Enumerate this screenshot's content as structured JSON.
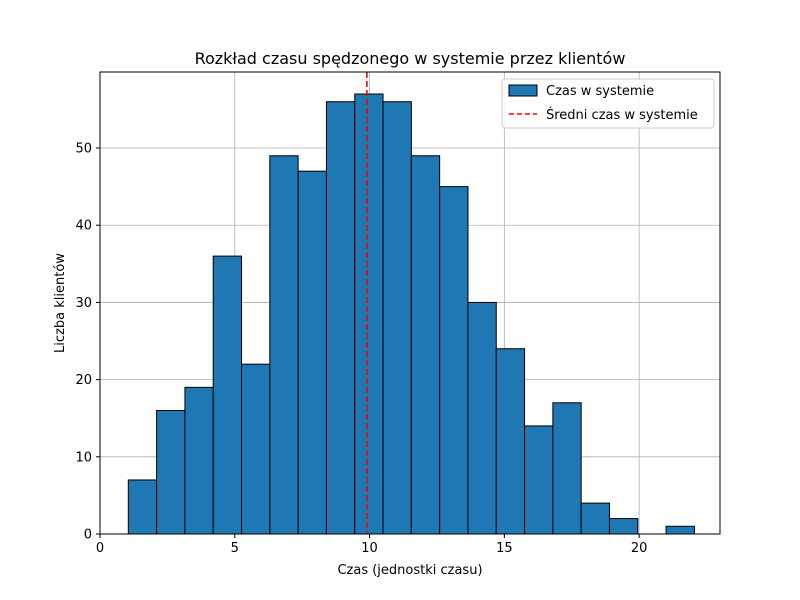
{
  "chart_data": {
    "type": "bar",
    "title": "Rozkład czasu spędzonego w systemie przez klientów",
    "xlabel": "Czas (jednostki czasu)",
    "ylabel": "Liczba klientów",
    "xlim": [
      0,
      23
    ],
    "ylim": [
      0,
      59.85
    ],
    "xticks": [
      "0",
      "5",
      "10",
      "15",
      "20"
    ],
    "yticks": [
      "0",
      "10",
      "20",
      "30",
      "40",
      "50"
    ],
    "grid": true,
    "legend_position": "top-right",
    "bin_edges": [
      1.05,
      2.1,
      3.15,
      4.2,
      5.25,
      6.3,
      7.35,
      8.4,
      9.45,
      10.5,
      11.55,
      12.6,
      13.65,
      14.7,
      15.75,
      16.8,
      17.85,
      18.9,
      19.95,
      21.0,
      22.05
    ],
    "series": [
      {
        "name": "Czas w systemie",
        "color": "#1f77b4",
        "values": [
          7,
          16,
          19,
          36,
          22,
          49,
          47,
          56,
          57,
          56,
          49,
          45,
          30,
          24,
          14,
          17,
          4,
          2,
          0,
          1
        ]
      }
    ],
    "reference_lines": [
      {
        "name": "Średni czas w systemie",
        "x": 9.9,
        "color": "#ff0000",
        "style": "dashed"
      }
    ]
  }
}
